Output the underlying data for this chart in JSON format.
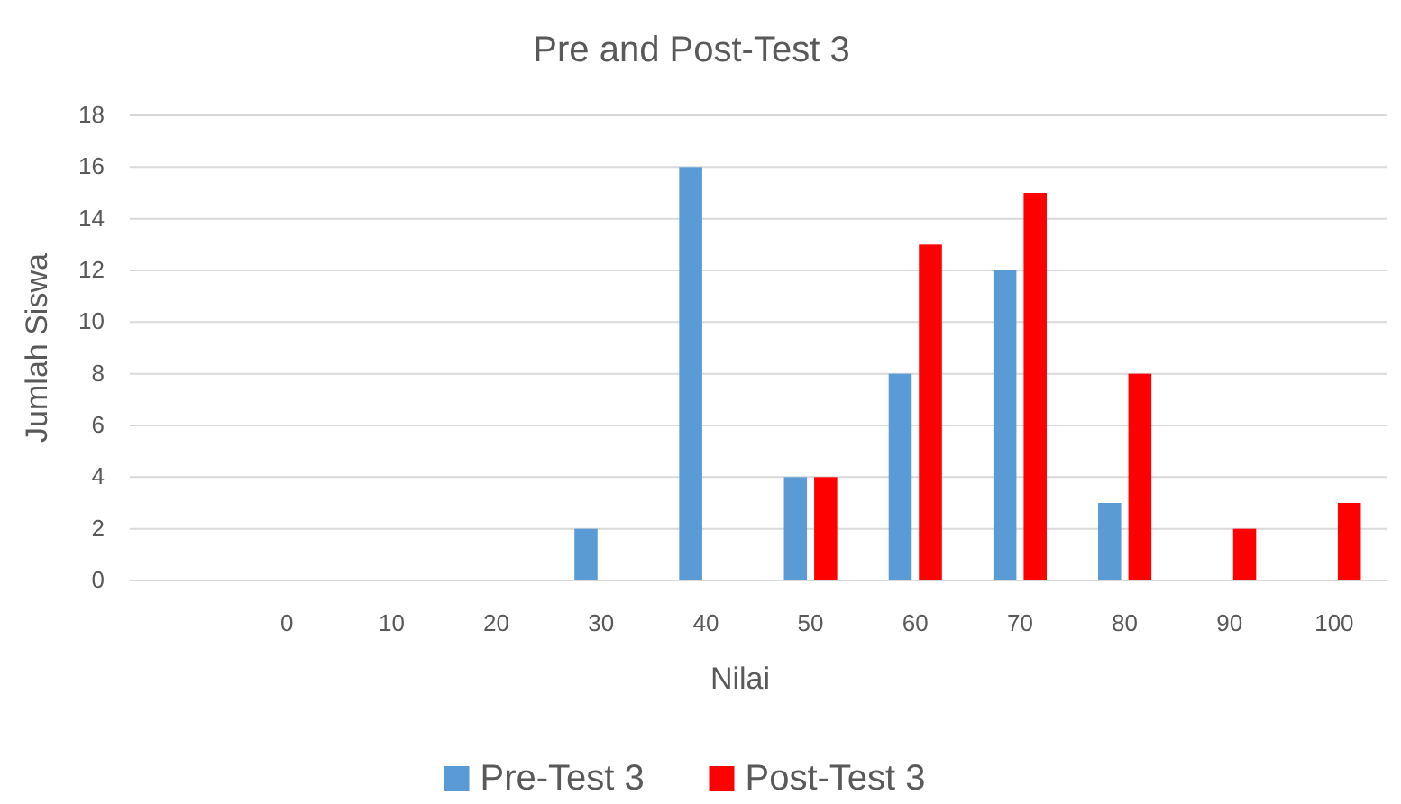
{
  "chart_data": {
    "type": "bar",
    "title": "Pre and Post-Test 3",
    "xlabel": "Nilai",
    "ylabel": "Jumlah Siswa",
    "categories": [
      null,
      "0",
      "10",
      "20",
      "30",
      "40",
      "50",
      "60",
      "70",
      "80",
      "90",
      "100"
    ],
    "series": [
      {
        "name": "Pre-Test 3",
        "color": "#5b9bd5",
        "values": [
          null,
          0,
          0,
          0,
          2,
          16,
          4,
          8,
          12,
          3,
          0,
          0
        ]
      },
      {
        "name": "Post-Test 3",
        "color": "#ff0000",
        "values": [
          null,
          0,
          0,
          0,
          0,
          0,
          4,
          13,
          15,
          8,
          2,
          3
        ]
      }
    ],
    "ylim": [
      0,
      18
    ],
    "yticks": [
      0,
      2,
      4,
      6,
      8,
      10,
      12,
      14,
      16,
      18
    ],
    "grid": "y",
    "legend": "bottom"
  }
}
